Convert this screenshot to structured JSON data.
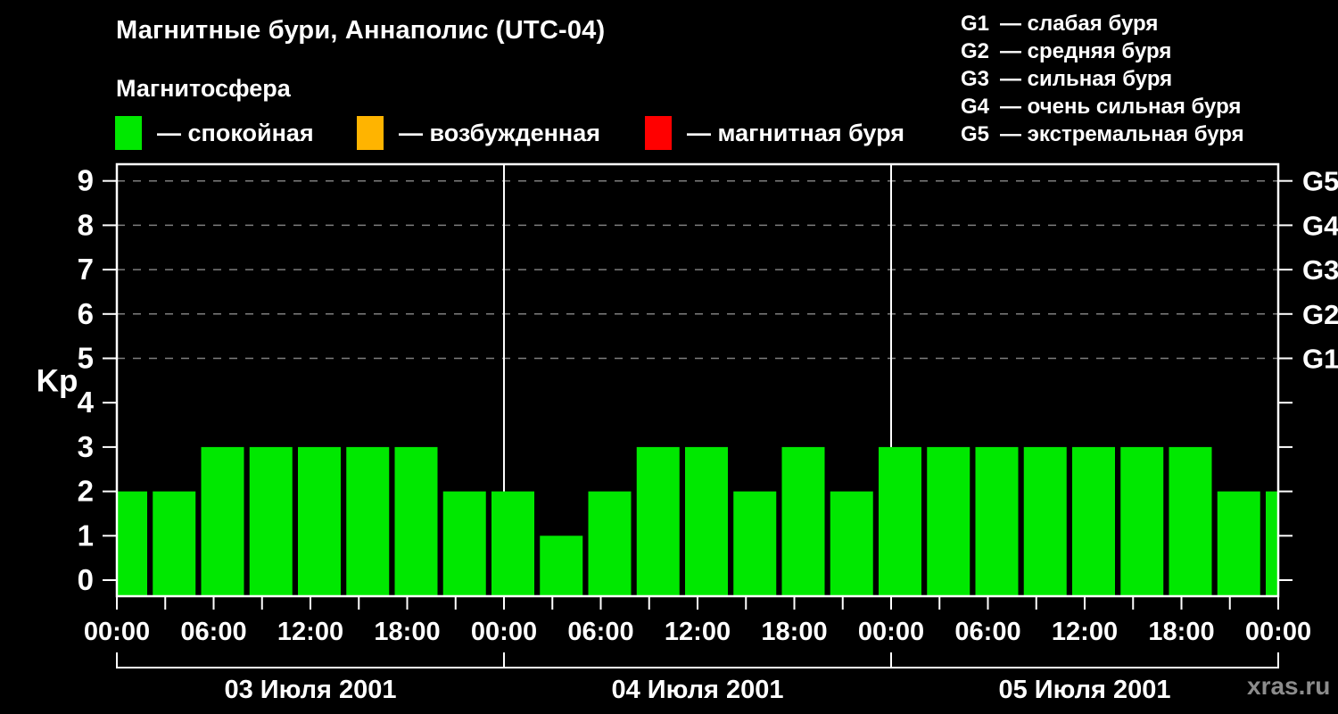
{
  "title": "Магнитные бури, Аннаполис (UTC-04)",
  "subtitle": "Магнитосфера",
  "legend": {
    "items": [
      {
        "name": "quiet",
        "label": "— спокойная",
        "color": "#00e800"
      },
      {
        "name": "excited",
        "label": "— возбужденная",
        "color": "#ffb400"
      },
      {
        "name": "storm",
        "label": "— магнитная буря",
        "color": "#ff0000"
      }
    ]
  },
  "storm_scale_legend": [
    {
      "level": "G1",
      "label": "— слабая буря"
    },
    {
      "level": "G2",
      "label": "— средняя буря"
    },
    {
      "level": "G3",
      "label": "— сильная буря"
    },
    {
      "level": "G4",
      "label": "— очень сильная буря"
    },
    {
      "level": "G5",
      "label": "— экстремальная буря"
    }
  ],
  "watermark": "xras.ru",
  "chart_data": {
    "type": "bar",
    "title": "Магнитные бури, Аннаполис (UTC-04)",
    "ylabel": "Kp",
    "ylim": [
      0,
      9
    ],
    "y_ticks": [
      0,
      1,
      2,
      3,
      4,
      5,
      6,
      7,
      8,
      9
    ],
    "grid_levels": [
      5,
      6,
      7,
      8,
      9
    ],
    "grid_on": true,
    "right_axis": [
      {
        "value": 5,
        "label": "G1"
      },
      {
        "value": 6,
        "label": "G2"
      },
      {
        "value": 7,
        "label": "G3"
      },
      {
        "value": 8,
        "label": "G4"
      },
      {
        "value": 9,
        "label": "G5"
      }
    ],
    "bar_color": "#00e800",
    "interval_hours": 3,
    "x_hours": [
      0,
      3,
      6,
      9,
      12,
      15,
      18,
      21,
      24,
      27,
      30,
      33,
      36,
      39,
      42,
      45,
      48,
      51,
      54,
      57,
      60,
      63,
      66,
      69,
      72
    ],
    "values": [
      2,
      2,
      3,
      3,
      3,
      3,
      3,
      2,
      2,
      1,
      2,
      3,
      3,
      2,
      3,
      2,
      3,
      3,
      3,
      3,
      3,
      3,
      3,
      2,
      2
    ],
    "x_time_ticks": [
      {
        "hour": 0,
        "label": "00:00"
      },
      {
        "hour": 6,
        "label": "06:00"
      },
      {
        "hour": 12,
        "label": "12:00"
      },
      {
        "hour": 18,
        "label": "18:00"
      },
      {
        "hour": 24,
        "label": "00:00"
      },
      {
        "hour": 30,
        "label": "06:00"
      },
      {
        "hour": 36,
        "label": "12:00"
      },
      {
        "hour": 42,
        "label": "18:00"
      },
      {
        "hour": 48,
        "label": "00:00"
      },
      {
        "hour": 54,
        "label": "06:00"
      },
      {
        "hour": 60,
        "label": "12:00"
      },
      {
        "hour": 66,
        "label": "18:00"
      },
      {
        "hour": 72,
        "label": "00:00"
      }
    ],
    "day_boundary_hours": [
      24,
      48
    ],
    "days": [
      {
        "label": "03 Июля 2001",
        "start_hour": 0,
        "end_hour": 24
      },
      {
        "label": "04 Июля 2001",
        "start_hour": 24,
        "end_hour": 48
      },
      {
        "label": "05 Июля 2001",
        "start_hour": 48,
        "end_hour": 72
      }
    ]
  }
}
